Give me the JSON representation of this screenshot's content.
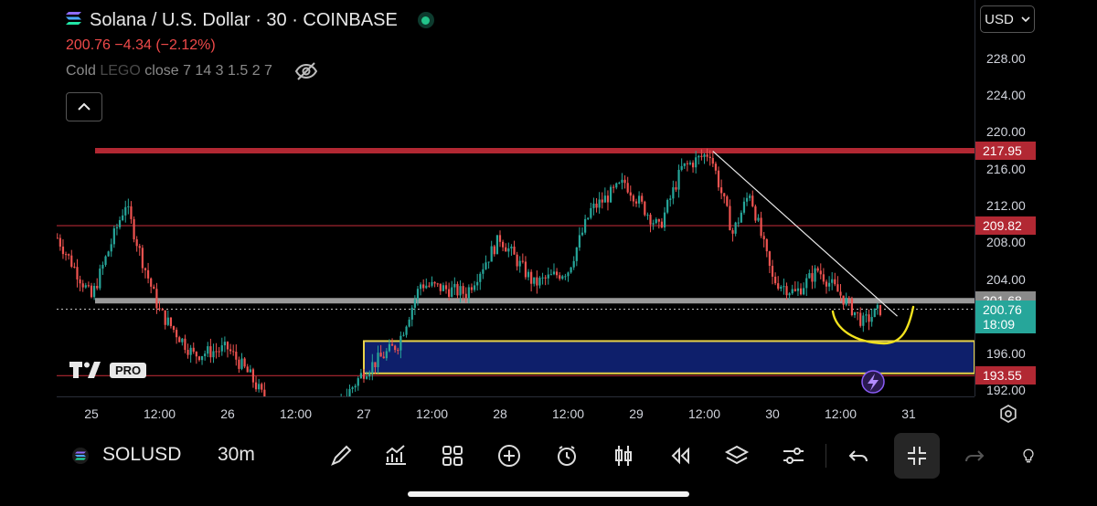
{
  "header": {
    "symbol_title": "Solana / U.S. Dollar · 30 · COINBASE",
    "price_change": "200.76  −4.34 (−2.12%)",
    "indicator_name": "Cold ",
    "indicator_faded": "LEGO",
    "indicator_params": " close 7 14 3 1.5 2 7"
  },
  "currency": {
    "label": "USD"
  },
  "logo": {
    "pro_label": "PRO"
  },
  "chart_data": {
    "type": "candlestick",
    "symbol": "SOLUSD",
    "interval": "30m",
    "price_axis": {
      "ticks": [
        228,
        224,
        220,
        216,
        212,
        208,
        204,
        196,
        192
      ],
      "range": [
        191.3,
        234.3
      ],
      "tick_labels": [
        "228.00",
        "224.00",
        "220.00",
        "216.00",
        "212.00",
        "208.00",
        "204.00",
        "196.00",
        "192.00"
      ]
    },
    "time_axis": {
      "labels": [
        "25",
        "12:00",
        "26",
        "12:00",
        "27",
        "12:00",
        "28",
        "12:00",
        "29",
        "12:00",
        "30",
        "12:00",
        "31"
      ]
    },
    "price_labels": [
      {
        "label": "217.95",
        "value": 217.95,
        "color": "#b22833"
      },
      {
        "label": "209.82",
        "value": 209.82,
        "color": "#b22833"
      },
      {
        "label": "201.68",
        "value": 201.68,
        "color": "#8a8a8a"
      },
      {
        "label": "200.76",
        "sub": "18:09",
        "value": 200.76,
        "color": "#26a69a"
      },
      {
        "label": "193.55",
        "value": 193.55,
        "color": "#b22833"
      }
    ],
    "levels": [
      {
        "value": 217.95,
        "color": "#b22833",
        "width": "thick"
      },
      {
        "value": 209.82,
        "color": "#b22833",
        "width": "thin"
      },
      {
        "value": 201.68,
        "color": "#9a9a9a",
        "width": "thick"
      },
      {
        "value": 193.55,
        "color": "#b22833",
        "width": "thin"
      }
    ],
    "zone": {
      "top": 197.3,
      "bottom": 193.8,
      "from_label": "27",
      "color": "#0e1f6b",
      "border": "#e8d24a"
    },
    "last_price": 200.76,
    "key_points": [
      {
        "t": "24 18:00",
        "p": 208.5
      },
      {
        "t": "25 00:00",
        "p": 202
      },
      {
        "t": "25 06:00",
        "p": 212.2
      },
      {
        "t": "25 09:00",
        "p": 206
      },
      {
        "t": "25 12:00",
        "p": 200.5
      },
      {
        "t": "25 18:00",
        "p": 195.8
      },
      {
        "t": "26 00:00",
        "p": 196.5
      },
      {
        "t": "26 04:00",
        "p": 193.5
      },
      {
        "t": "26 07:00",
        "p": 190.5
      },
      {
        "t": "26 18:00",
        "p": 189
      },
      {
        "t": "27 00:00",
        "p": 194
      },
      {
        "t": "27 06:00",
        "p": 197
      },
      {
        "t": "27 10:00",
        "p": 203.5
      },
      {
        "t": "27 18:00",
        "p": 202.5
      },
      {
        "t": "28 00:00",
        "p": 208.5
      },
      {
        "t": "28 06:00",
        "p": 203.5
      },
      {
        "t": "28 12:00",
        "p": 205
      },
      {
        "t": "28 16:00",
        "p": 211.5
      },
      {
        "t": "28 22:00",
        "p": 214.5
      },
      {
        "t": "29 04:00",
        "p": 209.5
      },
      {
        "t": "29 08:00",
        "p": 216
      },
      {
        "t": "29 13:00",
        "p": 217.8
      },
      {
        "t": "29 17:00",
        "p": 209
      },
      {
        "t": "29 20:00",
        "p": 213.5
      },
      {
        "t": "30 00:00",
        "p": 204
      },
      {
        "t": "30 04:00",
        "p": 202.5
      },
      {
        "t": "30 08:00",
        "p": 205
      },
      {
        "t": "30 12:00",
        "p": 202.3
      },
      {
        "t": "30 16:00",
        "p": 199.3
      },
      {
        "t": "30 19:00",
        "p": 200.76
      }
    ],
    "trendline": [
      {
        "t": "29 13:30",
        "p": 217.9
      },
      {
        "t": "30 22:00",
        "p": 200.0
      }
    ]
  },
  "toolbar": {
    "symbol": "SOLUSD",
    "interval": "30m",
    "tools": [
      "brush-icon",
      "indicators-icon",
      "widgets-icon",
      "add-icon",
      "alert-icon",
      "candle-type-icon",
      "replay-icon",
      "layers-icon",
      "settings-sliders-icon",
      "undo-icon",
      "fullscreen-exit-icon",
      "redo-icon",
      "idea-icon"
    ]
  }
}
